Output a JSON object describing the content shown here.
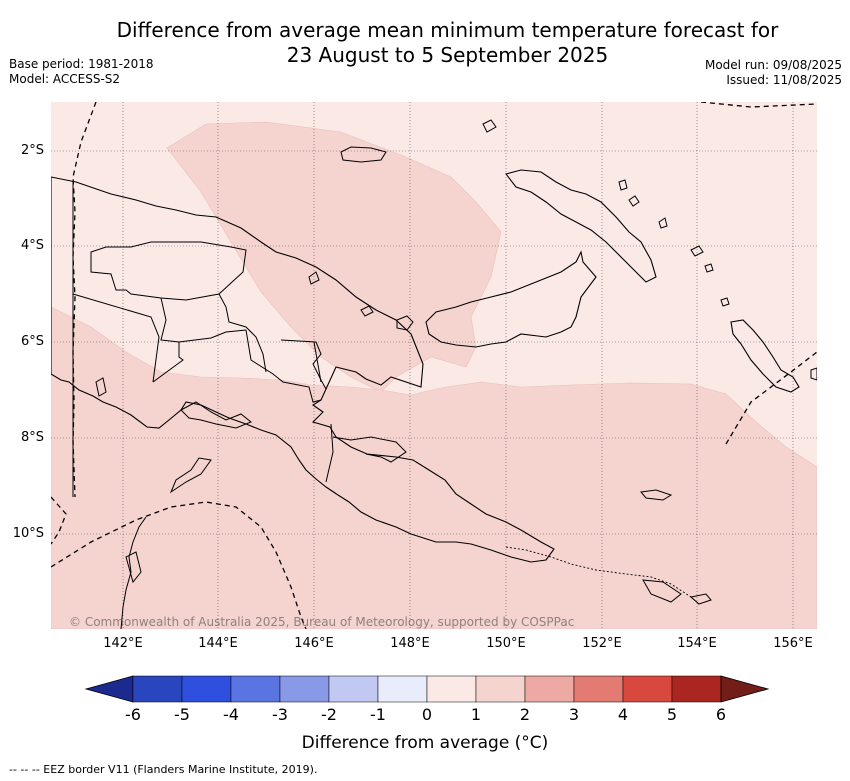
{
  "title_line1": "Difference from average mean minimum temperature forecast for",
  "title_line2": "23 August to 5 September 2025",
  "base_period": "Base period: 1981-2018",
  "model": "Model: ACCESS-S2",
  "model_run": "Model run: 09/08/2025",
  "issued": "Issued: 11/08/2025",
  "latitudes": [
    "2°S",
    "4°S",
    "6°S",
    "8°S",
    "10°S"
  ],
  "longitudes": [
    "142°E",
    "144°E",
    "146°E",
    "148°E",
    "150°E",
    "152°E",
    "154°E",
    "156°E"
  ],
  "copyright": "© Commonwealth of Australia 2025, Bureau of Meteorology, supported by COSPPac",
  "colorbar": {
    "title": "Difference from average (°C)",
    "ticks": [
      "-6",
      "-5",
      "-4",
      "-3",
      "-2",
      "-1",
      "0",
      "1",
      "2",
      "3",
      "4",
      "5",
      "6"
    ],
    "colors": [
      "#1c2a8f",
      "#2a46bf",
      "#2f4fde",
      "#5a74e2",
      "#8899e8",
      "#c1c8f2",
      "#e9ecfa",
      "#fbe9e6",
      "#f5d3cf",
      "#eda9a3",
      "#e37b73",
      "#d9483e",
      "#ac2621",
      "#731d19"
    ]
  },
  "footer": "-- -- -- EEZ border V11 (Flanders Marine Institute, 2019).",
  "colors": {
    "anomaly_0_1": "#fbe9e6",
    "anomaly_1_2": "#f5d3cf"
  }
}
